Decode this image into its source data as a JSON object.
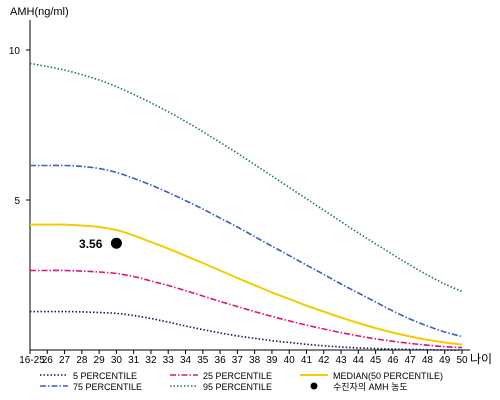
{
  "chart_data": {
    "type": "line",
    "ylabel": "AMH(ng/ml)",
    "xlabel": "나이",
    "ylim": [
      0,
      11
    ],
    "yticks": [
      5,
      10
    ],
    "categories": [
      "16-25",
      "26",
      "27",
      "28",
      "29",
      "30",
      "31",
      "32",
      "33",
      "34",
      "35",
      "36",
      "37",
      "38",
      "39",
      "40",
      "41",
      "42",
      "43",
      "44",
      "45",
      "46",
      "47",
      "48",
      "49",
      "50"
    ],
    "series": [
      {
        "name": "5 PERCENTILE",
        "color": "#0d1a5e",
        "dash": "dotted",
        "values": [
          1.28,
          1.28,
          1.28,
          1.27,
          1.25,
          1.22,
          1.15,
          1.05,
          0.93,
          0.8,
          0.68,
          0.57,
          0.47,
          0.39,
          0.31,
          0.25,
          0.19,
          0.14,
          0.1,
          0.07,
          0.05,
          0.03,
          0.02,
          0.01,
          0.0,
          0.0
        ]
      },
      {
        "name": "25 PERCENTILE",
        "color": "#e0127a",
        "dash": "dashdot",
        "values": [
          2.65,
          2.65,
          2.65,
          2.63,
          2.6,
          2.55,
          2.45,
          2.3,
          2.15,
          1.98,
          1.8,
          1.62,
          1.45,
          1.28,
          1.12,
          0.97,
          0.83,
          0.7,
          0.58,
          0.47,
          0.37,
          0.29,
          0.22,
          0.16,
          0.11,
          0.08
        ]
      },
      {
        "name": "MEDIAN(50 PERCENTILE)",
        "color": "#f2cc00",
        "dash": "solid",
        "values": [
          4.18,
          4.18,
          4.18,
          4.15,
          4.1,
          4.0,
          3.82,
          3.6,
          3.38,
          3.14,
          2.9,
          2.65,
          2.4,
          2.16,
          1.92,
          1.7,
          1.48,
          1.28,
          1.08,
          0.9,
          0.73,
          0.58,
          0.45,
          0.34,
          0.25,
          0.18
        ]
      },
      {
        "name": "75 PERCENTILE",
        "color": "#3a5fc4",
        "dash": "dashdot",
        "values": [
          6.15,
          6.15,
          6.15,
          6.12,
          6.05,
          5.92,
          5.72,
          5.5,
          5.25,
          4.98,
          4.7,
          4.4,
          4.1,
          3.78,
          3.46,
          3.15,
          2.83,
          2.52,
          2.2,
          1.9,
          1.6,
          1.3,
          1.03,
          0.8,
          0.6,
          0.45
        ]
      },
      {
        "name": "95 PERCENTILE",
        "color": "#1f7a3c",
        "dash": "dotted",
        "values": [
          9.55,
          9.45,
          9.33,
          9.18,
          9.0,
          8.78,
          8.52,
          8.24,
          7.94,
          7.62,
          7.28,
          6.92,
          6.56,
          6.18,
          5.8,
          5.42,
          5.04,
          4.66,
          4.28,
          3.9,
          3.54,
          3.18,
          2.83,
          2.5,
          2.2,
          1.95
        ]
      }
    ],
    "marker": {
      "name": "수진자의 AMH 농도",
      "x": "30",
      "y": 3.56,
      "label": "3.56",
      "color": "#000000"
    }
  }
}
